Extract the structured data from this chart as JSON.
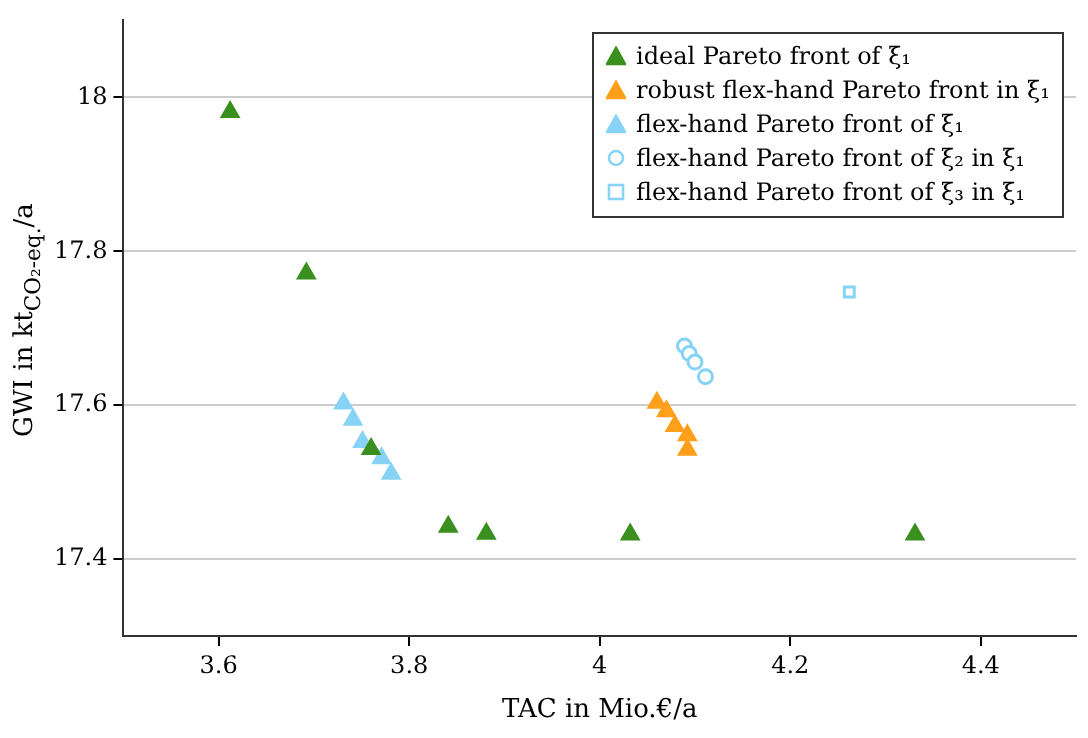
{
  "chart_data": {
    "type": "scatter",
    "xlabel": "TAC in Mio.€/a",
    "ylabel": "GWI in kt$_{CO₂-eq.}$/a",
    "xlim": [
      3.5,
      4.5
    ],
    "xticks": [
      3.6,
      3.8,
      4,
      4.2,
      4.4
    ],
    "ylim": [
      17.3,
      18.1
    ],
    "yticks": [
      17.4,
      17.6,
      17.8,
      18
    ],
    "grid": "y",
    "legend": "top right",
    "series": [
      {
        "name": "ideal Pareto front of ξ₁",
        "color": "#3a8f1e",
        "marker": "triangle",
        "x": [
          3.612,
          3.692,
          3.76,
          3.841,
          3.881,
          4.032,
          4.331
        ],
        "values": [
          17.981,
          17.771,
          17.543,
          17.442,
          17.433,
          17.432,
          17.432
        ]
      },
      {
        "name": "robust flex-hand Pareto front in ξ₁",
        "color": "#ff9f1a",
        "marker": "triangle",
        "x": [
          4.06,
          4.07,
          4.079,
          4.092,
          4.092
        ],
        "values": [
          17.603,
          17.592,
          17.573,
          17.561,
          17.542
        ]
      },
      {
        "name": "flex-hand Pareto front of ξ₁",
        "color": "#87d3f5",
        "marker": "triangle",
        "x": [
          3.731,
          3.741,
          3.751,
          3.771,
          3.781
        ],
        "values": [
          17.602,
          17.581,
          17.552,
          17.531,
          17.511
        ]
      },
      {
        "name": "flex-hand Pareto front of ξ₂ in ξ₁",
        "color": "#87d3f5",
        "marker": "circle",
        "x": [
          4.089,
          4.094,
          4.1,
          4.111
        ],
        "values": [
          17.677,
          17.667,
          17.656,
          17.637
        ]
      },
      {
        "name": "flex-hand Pareto front of ξ₃ in ξ₁",
        "color": "#87d3f5",
        "marker": "square",
        "x": [
          4.262
        ],
        "values": [
          17.747
        ]
      }
    ]
  }
}
